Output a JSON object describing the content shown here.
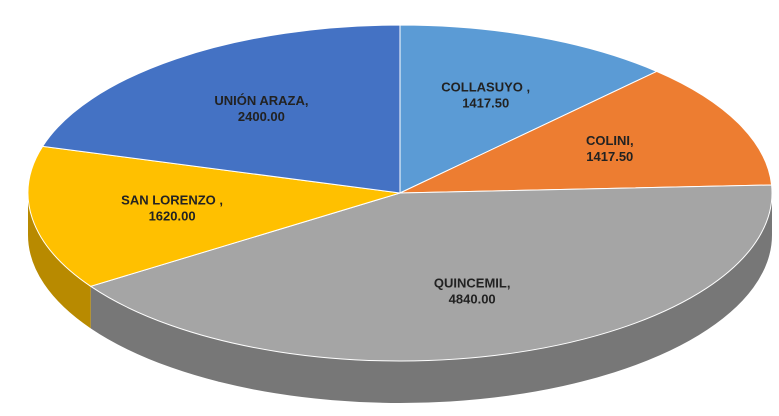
{
  "chart_data": {
    "type": "pie3d",
    "categories": [
      "COLLASUYO ,",
      "COLINI,",
      "QUINCEMIL,",
      "SAN LORENZO ,",
      "UNIÓN ARAZA,"
    ],
    "values": [
      1417.5,
      1417.5,
      4840,
      1620,
      2400
    ],
    "value_labels": [
      "1417.50",
      "1417.50",
      "4840.00",
      "1620.00",
      "2400.00"
    ],
    "colors": [
      "#5b9bd5",
      "#ed7d31",
      "#a5a5a5",
      "#ffc000",
      "#4472c4"
    ]
  }
}
